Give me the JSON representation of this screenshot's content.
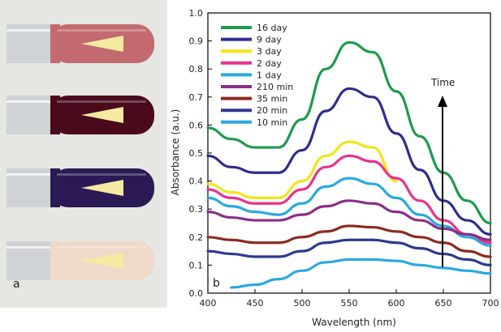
{
  "panels": {
    "left_label": "a",
    "right_label": "b"
  },
  "tubes": [
    {
      "color": "#c26a6f"
    },
    {
      "color": "#4a0a1c"
    },
    {
      "color": "#2b1a55"
    },
    {
      "color": "#efd9c8"
    }
  ],
  "chart_data": {
    "type": "line",
    "xlabel": "Wavelength (nm)",
    "ylabel": "Absorbance (a.u.)",
    "xlim": [
      400,
      700
    ],
    "ylim": [
      0,
      1.0
    ],
    "xticks": [
      400,
      450,
      500,
      550,
      600,
      650,
      700
    ],
    "yticks": [
      0.0,
      0.1,
      0.2,
      0.3,
      0.4,
      0.5,
      0.6,
      0.7,
      0.8,
      0.9,
      1.0
    ],
    "ytick_labels": [
      "0.0",
      "0.1",
      "0.2",
      "0.3",
      "0.4",
      "0.5",
      "0.6",
      "0.7",
      "0.8",
      "0.9",
      "1.0"
    ],
    "legend_position": "top-left",
    "annotation": "Time",
    "x": [
      400,
      425,
      450,
      475,
      500,
      525,
      550,
      575,
      600,
      625,
      650,
      675,
      700
    ],
    "series": [
      {
        "name": "16 day",
        "color": "#1e9a4e",
        "values": [
          0.59,
          0.55,
          0.52,
          0.52,
          0.62,
          0.8,
          0.895,
          0.86,
          0.72,
          0.56,
          0.43,
          0.33,
          0.25
        ]
      },
      {
        "name": "9 day",
        "color": "#2e2e8e",
        "values": [
          0.49,
          0.45,
          0.43,
          0.43,
          0.51,
          0.65,
          0.73,
          0.7,
          0.57,
          0.44,
          0.33,
          0.26,
          0.21
        ]
      },
      {
        "name": "3 day",
        "color": "#f2e418",
        "values": [
          0.39,
          0.36,
          0.34,
          0.34,
          0.4,
          0.49,
          0.54,
          0.52,
          0.4,
          null,
          null,
          null,
          null
        ]
      },
      {
        "name": "2 day",
        "color": "#e8338b",
        "values": [
          0.37,
          0.34,
          0.32,
          0.32,
          0.37,
          0.45,
          0.49,
          0.47,
          0.41,
          0.33,
          0.26,
          0.21,
          0.18
        ]
      },
      {
        "name": "1 day",
        "color": "#29a9e0",
        "values": [
          0.34,
          0.31,
          0.29,
          0.28,
          0.32,
          0.38,
          0.41,
          0.39,
          0.34,
          0.28,
          0.24,
          0.2,
          0.17
        ]
      },
      {
        "name": "210 min",
        "color": "#8b2f86",
        "values": [
          0.29,
          0.27,
          0.26,
          0.26,
          0.28,
          0.31,
          0.33,
          0.32,
          0.29,
          0.26,
          0.23,
          0.21,
          0.19
        ]
      },
      {
        "name": "35 min",
        "color": "#8b2b1e",
        "values": [
          0.2,
          0.19,
          0.18,
          0.18,
          0.2,
          0.22,
          0.24,
          0.235,
          0.22,
          0.2,
          0.18,
          0.15,
          0.13
        ]
      },
      {
        "name": "20 min",
        "color": "#2e3a8e",
        "values": [
          0.15,
          0.14,
          0.13,
          0.13,
          0.15,
          0.18,
          0.19,
          0.19,
          0.18,
          0.16,
          0.14,
          0.12,
          0.1
        ]
      },
      {
        "name": "10 min",
        "color": "#29a9e0",
        "values": [
          null,
          0.02,
          0.03,
          0.05,
          0.08,
          0.11,
          0.12,
          0.12,
          0.115,
          0.1,
          0.09,
          0.08,
          0.07
        ]
      }
    ]
  }
}
